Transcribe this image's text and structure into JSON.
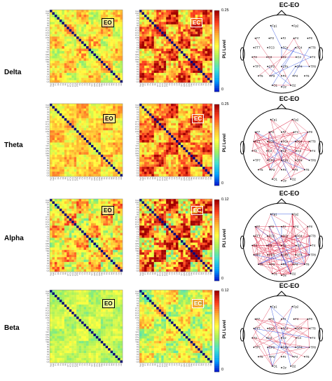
{
  "colorscale": [
    "#0000c8",
    "#00a0ff",
    "#40e0d0",
    "#a0f060",
    "#ffff40",
    "#ffb030",
    "#ff4020",
    "#a00000"
  ],
  "colors": {
    "ec_minus_eo_positive": "#e0405a",
    "ec_minus_eo_negative": "#3050e0",
    "diagonal": "#00007a"
  },
  "cbar_title": "PLI Level",
  "head_title": "EC-EO",
  "chart_data": [
    {
      "type": "heatmap",
      "title": "Delta",
      "ylabel": "PLI Level",
      "clim": [
        0,
        0.25
      ],
      "panels": [
        {
          "tag": "EO",
          "mean": 0.15,
          "variation": 0.04
        },
        {
          "tag": "EC",
          "mean": 0.19,
          "variation": 0.06
        }
      ]
    },
    {
      "type": "heatmap",
      "title": "Theta",
      "ylabel": "PLI Level",
      "clim": [
        0,
        0.25
      ],
      "panels": [
        {
          "tag": "EO",
          "mean": 0.16,
          "variation": 0.03
        },
        {
          "tag": "EC",
          "mean": 0.19,
          "variation": 0.05
        }
      ]
    },
    {
      "type": "heatmap",
      "title": "Alpha",
      "ylabel": "PLI Level",
      "clim": [
        0,
        0.12
      ],
      "panels": [
        {
          "tag": "EO",
          "mean": 0.075,
          "variation": 0.025
        },
        {
          "tag": "EC",
          "mean": 0.09,
          "variation": 0.04
        }
      ]
    },
    {
      "type": "heatmap",
      "title": "Beta",
      "ylabel": "PLI Level",
      "clim": [
        0,
        0.12
      ],
      "panels": [
        {
          "tag": "EO",
          "mean": 0.058,
          "variation": 0.01
        },
        {
          "tag": "EC",
          "mean": 0.065,
          "variation": 0.02
        }
      ]
    }
  ],
  "rows": [
    {
      "band": "Delta",
      "cbar_max": "0.25",
      "cbar_min": "0",
      "panels": [
        {
          "tag": "EO"
        },
        {
          "tag": "EC"
        }
      ],
      "electrodes": [
        "Fp1",
        "Fp2",
        "F7",
        "F3",
        "Fz",
        "F4",
        "F8",
        "FT7",
        "FC3",
        "FCz",
        "FC4",
        "FT8",
        "T3",
        "C3",
        "Cz",
        "C4",
        "T4",
        "TP7",
        "CP3",
        "CPz",
        "CP4",
        "TP8",
        "T5",
        "P3",
        "Pz",
        "P4",
        "T6",
        "O1",
        "Oz",
        "O2"
      ],
      "ec_eo_links_pos": 8,
      "ec_eo_links_neg": 10
    },
    {
      "band": "Theta",
      "cbar_max": "0.25",
      "cbar_min": "0",
      "panels": [
        {
          "tag": "EO"
        },
        {
          "tag": "EC"
        }
      ],
      "electrodes": [
        "Fp1",
        "Fp2",
        "F7",
        "F3",
        "Fz",
        "F4",
        "F8",
        "FT7",
        "FC3",
        "FCz",
        "FC4",
        "FT8",
        "T3",
        "C3",
        "Cz",
        "C4",
        "T4",
        "TP7",
        "CP3",
        "CPz",
        "CP4",
        "TP8",
        "T5",
        "P3",
        "Pz",
        "P4",
        "T6",
        "O1",
        "Oz",
        "O2"
      ],
      "ec_eo_links_pos": 55,
      "ec_eo_links_neg": 6
    },
    {
      "band": "Alpha",
      "cbar_max": "0.12",
      "cbar_min": "0",
      "panels": [
        {
          "tag": "EO"
        },
        {
          "tag": "EC"
        }
      ],
      "electrodes": [
        "Fp1",
        "Fp2",
        "F7",
        "F3",
        "Fz",
        "F4",
        "F8",
        "FT7",
        "FC3",
        "FCz",
        "FC4",
        "FT8",
        "T3",
        "C3",
        "Cz",
        "C4",
        "T4",
        "TP7",
        "CP3",
        "CPz",
        "CP4",
        "TP8",
        "T5",
        "P3",
        "Pz",
        "P4",
        "T6",
        "O1",
        "Oz",
        "O2"
      ],
      "ec_eo_links_pos": 90,
      "ec_eo_links_neg": 14
    },
    {
      "band": "Beta",
      "cbar_max": "0.12",
      "cbar_min": "0",
      "panels": [
        {
          "tag": "EO"
        },
        {
          "tag": "EC"
        }
      ],
      "electrodes": [
        "Fp1",
        "Fp2",
        "F7",
        "F3",
        "Fz",
        "F4",
        "F8",
        "FT7",
        "FC3",
        "FCz",
        "FC4",
        "FT8",
        "T3",
        "C3",
        "Cz",
        "C4",
        "T4",
        "TP7",
        "CP3",
        "CPz",
        "CP4",
        "TP8",
        "T5",
        "P3",
        "Pz",
        "P4",
        "T6",
        "O1",
        "Oz",
        "O2"
      ],
      "ec_eo_links_pos": 30,
      "ec_eo_links_neg": 8
    }
  ]
}
